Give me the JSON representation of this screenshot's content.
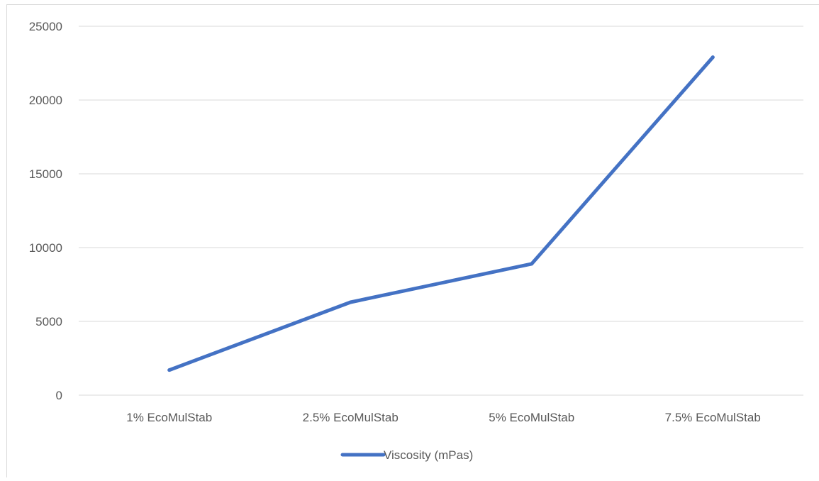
{
  "chart_data": {
    "type": "line",
    "categories": [
      "1% EcoMulStab",
      "2.5% EcoMulStab",
      "5% EcoMulStab",
      "7.5% EcoMulStab"
    ],
    "series": [
      {
        "name": "Viscosity (mPas)",
        "values": [
          1700,
          6300,
          8900,
          22900
        ],
        "color": "#4472C4"
      }
    ],
    "yticks": [
      0,
      5000,
      10000,
      15000,
      20000,
      25000
    ],
    "ylim": [
      0,
      25000
    ],
    "title": "",
    "xlabel": "",
    "ylabel": "",
    "grid": true,
    "legend_position": "bottom",
    "colors": {
      "gridline": "#d9d9d9",
      "axis_text": "#595959",
      "series": "#4472C4"
    }
  }
}
